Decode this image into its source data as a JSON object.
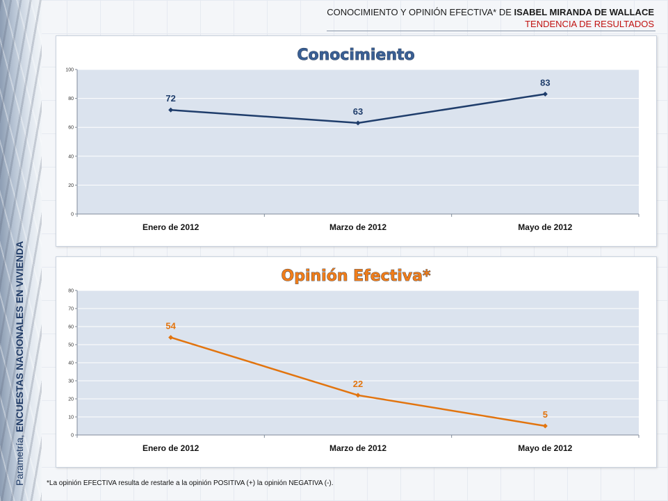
{
  "header": {
    "title_prefix": "CONOCIMIENTO Y OPINIÓN EFECTIVA* DE ",
    "title_name": "ISABEL MIRANDA DE WALLACE",
    "subtitle": "TENDENCIA DE RESULTADOS"
  },
  "side": {
    "brand": "Parametría, ",
    "label": "ENCUESTAS NACIONALES EN VIVIENDA"
  },
  "footnote": "*La opinión EFECTIVA resulta de restarle a la opinión POSITIVA (+) la opinión NEGATIVA (-).",
  "colors": {
    "plot_bg": "#dbe3ee",
    "series1": "#1f3d6b",
    "series2": "#e2740e",
    "title1_fill": "#3a5f94",
    "title2_fill": "#f07d1a"
  },
  "chart_data": [
    {
      "type": "line",
      "title": "Conocimiento",
      "categories": [
        "Enero de 2012",
        "Marzo de 2012",
        "Mayo de 2012"
      ],
      "series": [
        {
          "values": [
            72,
            63,
            83
          ]
        }
      ],
      "ylim": [
        0,
        100
      ],
      "yticks": [
        0,
        20,
        40,
        60,
        80,
        100
      ],
      "grid": true,
      "legend": "none"
    },
    {
      "type": "line",
      "title": "Opinión Efectiva*",
      "categories": [
        "Enero de 2012",
        "Marzo de 2012",
        "Mayo de 2012"
      ],
      "series": [
        {
          "values": [
            54,
            22,
            5
          ]
        }
      ],
      "ylim": [
        0,
        80
      ],
      "yticks": [
        0,
        10,
        20,
        30,
        40,
        50,
        60,
        70,
        80
      ],
      "grid": true,
      "legend": "none"
    }
  ]
}
